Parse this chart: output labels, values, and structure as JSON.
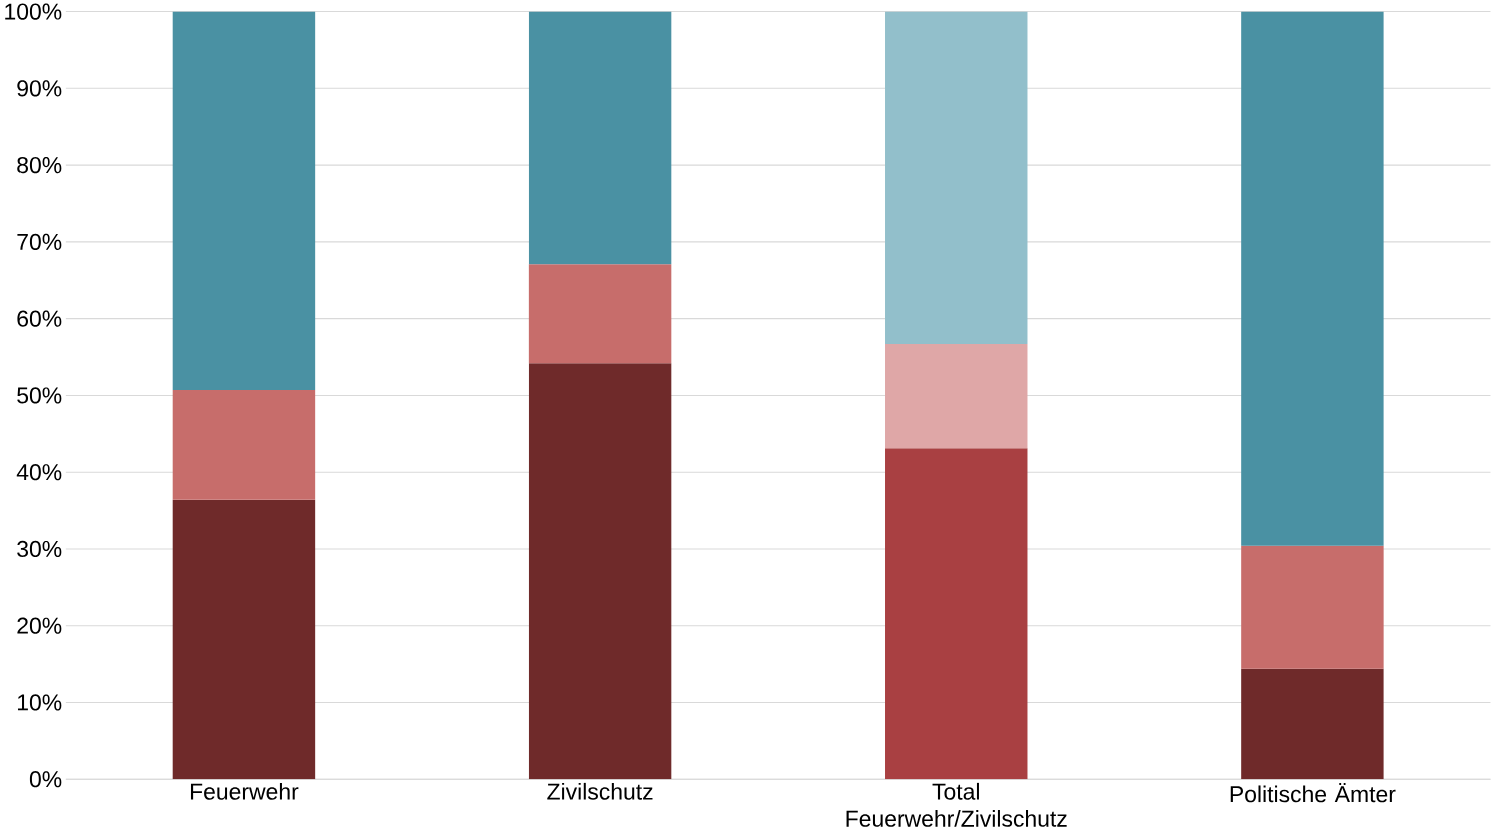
{
  "chart_data": {
    "type": "bar",
    "stacked": true,
    "categories": [
      "Feuerwehr",
      "Zivilschutz",
      "Total Feuerwehr/Zivilschutz",
      "Politische Ämter"
    ],
    "series": [
      {
        "colors": [
          "#6f2a2a",
          "#6f2a2a",
          "#a94042",
          "#6f2a2a"
        ],
        "values": [
          36.4,
          54.2,
          43.1,
          14.4
        ]
      },
      {
        "colors": [
          "#c76d6b",
          "#c76d6b",
          "#dfa7a7",
          "#c76d6b"
        ],
        "values": [
          14.3,
          12.9,
          13.6,
          16.0
        ]
      },
      {
        "colors": [
          "#4a91a3",
          "#4a91a3",
          "#92bfcb",
          "#4a91a3"
        ],
        "values": [
          49.3,
          32.9,
          43.3,
          69.6
        ]
      }
    ],
    "ylim": [
      0,
      100
    ],
    "yticks": [
      {
        "value": 0,
        "label": "0%"
      },
      {
        "value": 10,
        "label": "10%"
      },
      {
        "value": 20,
        "label": "20%"
      },
      {
        "value": 30,
        "label": "30%"
      },
      {
        "value": 40,
        "label": "40%"
      },
      {
        "value": 50,
        "label": "50%"
      },
      {
        "value": 60,
        "label": "60%"
      },
      {
        "value": 70,
        "label": "70%"
      },
      {
        "value": 80,
        "label": "80%"
      },
      {
        "value": 90,
        "label": "90%"
      },
      {
        "value": 100,
        "label": "100%"
      }
    ],
    "grid": "y"
  }
}
